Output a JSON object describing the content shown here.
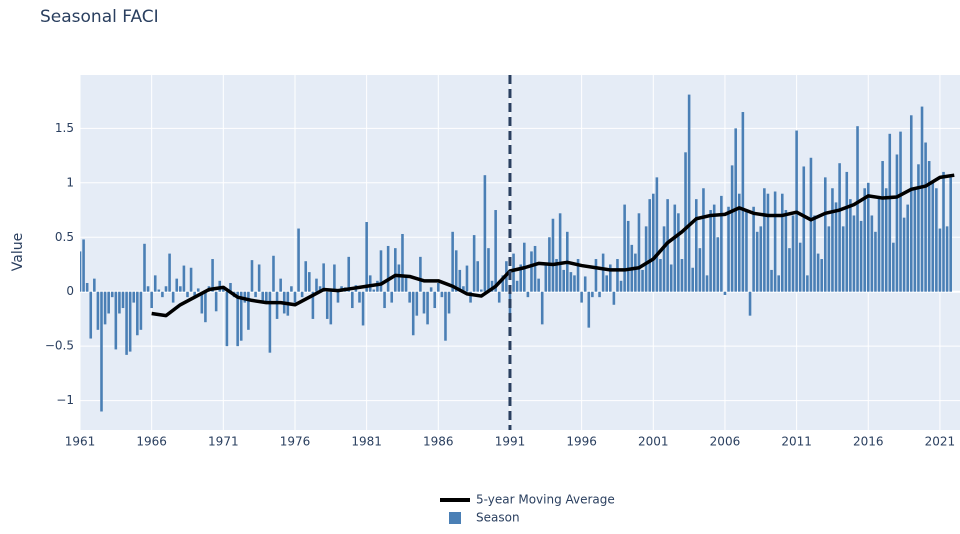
{
  "chart_data": {
    "type": "bar_line",
    "title": "Seasonal FACI",
    "y_label": "Value",
    "xlim": [
      1961,
      2022.4
    ],
    "ylim": [
      -1.27,
      1.99
    ],
    "xticks": [
      1961,
      1966,
      1971,
      1976,
      1981,
      1986,
      1991,
      1996,
      2001,
      2006,
      2011,
      2016,
      2021
    ],
    "yticks": [
      {
        "value": -1,
        "label": "−1"
      },
      {
        "value": -0.5,
        "label": "−0.5"
      },
      0,
      0.5,
      1,
      1.5
    ],
    "grid": true,
    "vertical_line": 1991,
    "series": [
      {
        "name": "5-year Moving Average",
        "kind": "line",
        "color": "#000000",
        "x": [
          1966,
          1967,
          1968,
          1969,
          1970,
          1971,
          1972,
          1973,
          1974,
          1975,
          1976,
          1977,
          1978,
          1979,
          1980,
          1981,
          1982,
          1983,
          1984,
          1985,
          1986,
          1987,
          1988,
          1989,
          1990,
          1991,
          1992,
          1993,
          1994,
          1995,
          1996,
          1997,
          1998,
          1999,
          2000,
          2001,
          2002,
          2003,
          2004,
          2005,
          2006,
          2007,
          2008,
          2009,
          2010,
          2011,
          2012,
          2013,
          2014,
          2015,
          2016,
          2017,
          2018,
          2019,
          2020,
          2021,
          2022
        ],
        "values": [
          -0.2,
          -0.22,
          -0.12,
          -0.05,
          0.02,
          0.04,
          -0.05,
          -0.08,
          -0.1,
          -0.1,
          -0.12,
          -0.05,
          0.02,
          0.01,
          0.03,
          0.05,
          0.07,
          0.15,
          0.14,
          0.1,
          0.1,
          0.05,
          -0.02,
          -0.04,
          0.05,
          0.19,
          0.22,
          0.26,
          0.25,
          0.27,
          0.24,
          0.22,
          0.2,
          0.2,
          0.22,
          0.3,
          0.45,
          0.55,
          0.67,
          0.7,
          0.71,
          0.77,
          0.72,
          0.7,
          0.7,
          0.73,
          0.66,
          0.72,
          0.75,
          0.8,
          0.88,
          0.86,
          0.87,
          0.94,
          0.97,
          1.05,
          1.07
        ]
      },
      {
        "name": "Season",
        "kind": "bar",
        "color": "#4a7fb5",
        "x": [
          1961,
          1961.25,
          1961.5,
          1961.75,
          1962,
          1962.25,
          1962.5,
          1962.75,
          1963,
          1963.25,
          1963.5,
          1963.75,
          1964,
          1964.25,
          1964.5,
          1964.75,
          1965,
          1965.25,
          1965.5,
          1965.75,
          1966,
          1966.25,
          1966.5,
          1966.75,
          1967,
          1967.25,
          1967.5,
          1967.75,
          1968,
          1968.25,
          1968.5,
          1968.75,
          1969,
          1969.25,
          1969.5,
          1969.75,
          1970,
          1970.25,
          1970.5,
          1970.75,
          1971,
          1971.25,
          1971.5,
          1971.75,
          1972,
          1972.25,
          1972.5,
          1972.75,
          1973,
          1973.25,
          1973.5,
          1973.75,
          1974,
          1974.25,
          1974.5,
          1974.75,
          1975,
          1975.25,
          1975.5,
          1975.75,
          1976,
          1976.25,
          1976.5,
          1976.75,
          1977,
          1977.25,
          1977.5,
          1977.75,
          1978,
          1978.25,
          1978.5,
          1978.75,
          1979,
          1979.25,
          1979.5,
          1979.75,
          1980,
          1980.25,
          1980.5,
          1980.75,
          1981,
          1981.25,
          1981.5,
          1981.75,
          1982,
          1982.25,
          1982.5,
          1982.75,
          1983,
          1983.25,
          1983.5,
          1983.75,
          1984,
          1984.25,
          1984.5,
          1984.75,
          1985,
          1985.25,
          1985.5,
          1985.75,
          1986,
          1986.25,
          1986.5,
          1986.75,
          1987,
          1987.25,
          1987.5,
          1987.75,
          1988,
          1988.25,
          1988.5,
          1988.75,
          1989,
          1989.25,
          1989.5,
          1989.75,
          1990,
          1990.25,
          1990.5,
          1990.75,
          1991,
          1991.25,
          1991.5,
          1991.75,
          1992,
          1992.25,
          1992.5,
          1992.75,
          1993,
          1993.25,
          1993.5,
          1993.75,
          1994,
          1994.25,
          1994.5,
          1994.75,
          1995,
          1995.25,
          1995.5,
          1995.75,
          1996,
          1996.25,
          1996.5,
          1996.75,
          1997,
          1997.25,
          1997.5,
          1997.75,
          1998,
          1998.25,
          1998.5,
          1998.75,
          1999,
          1999.25,
          1999.5,
          1999.75,
          2000,
          2000.25,
          2000.5,
          2000.75,
          2001,
          2001.25,
          2001.5,
          2001.75,
          2002,
          2002.25,
          2002.5,
          2002.75,
          2003,
          2003.25,
          2003.5,
          2003.75,
          2004,
          2004.25,
          2004.5,
          2004.75,
          2005,
          2005.25,
          2005.5,
          2005.75,
          2006,
          2006.25,
          2006.5,
          2006.75,
          2007,
          2007.25,
          2007.5,
          2007.75,
          2008,
          2008.25,
          2008.5,
          2008.75,
          2009,
          2009.25,
          2009.5,
          2009.75,
          2010,
          2010.25,
          2010.5,
          2010.75,
          2011,
          2011.25,
          2011.5,
          2011.75,
          2012,
          2012.25,
          2012.5,
          2012.75,
          2013,
          2013.25,
          2013.5,
          2013.75,
          2014,
          2014.25,
          2014.5,
          2014.75,
          2015,
          2015.25,
          2015.5,
          2015.75,
          2016,
          2016.25,
          2016.5,
          2016.75,
          2017,
          2017.25,
          2017.5,
          2017.75,
          2018,
          2018.25,
          2018.5,
          2018.75,
          2019,
          2019.25,
          2019.5,
          2019.75,
          2020,
          2020.25,
          2020.5,
          2020.75,
          2021,
          2021.25,
          2021.5,
          2021.75
        ],
        "values": [
          0.37,
          0.48,
          0.08,
          -0.43,
          0.12,
          -0.35,
          -1.1,
          -0.3,
          -0.2,
          -0.05,
          -0.53,
          -0.2,
          -0.15,
          -0.58,
          -0.55,
          -0.1,
          -0.4,
          -0.35,
          0.44,
          0.05,
          -0.15,
          0.15,
          0.02,
          -0.05,
          0.05,
          0.35,
          -0.1,
          0.12,
          0.05,
          0.24,
          -0.05,
          0.22,
          -0.05,
          0.03,
          -0.2,
          -0.28,
          0.05,
          0.3,
          -0.18,
          0.1,
          0.03,
          -0.5,
          0.08,
          -0.05,
          -0.5,
          -0.45,
          -0.1,
          -0.35,
          0.29,
          -0.05,
          0.25,
          -0.1,
          -0.1,
          -0.56,
          0.33,
          -0.25,
          0.12,
          -0.2,
          -0.22,
          0.05,
          -0.1,
          0.58,
          -0.05,
          0.28,
          0.18,
          -0.25,
          0.12,
          0.05,
          0.26,
          -0.25,
          -0.3,
          0.25,
          -0.1,
          0.05,
          0.04,
          0.32,
          -0.15,
          0.06,
          -0.1,
          -0.31,
          0.64,
          0.15,
          0.02,
          0.1,
          0.38,
          -0.15,
          0.42,
          -0.1,
          0.4,
          0.25,
          0.53,
          0.15,
          -0.1,
          -0.4,
          -0.22,
          0.32,
          -0.2,
          -0.3,
          0.04,
          -0.15,
          0.08,
          -0.05,
          -0.45,
          -0.2,
          0.55,
          0.38,
          0.2,
          0.05,
          0.24,
          -0.1,
          0.52,
          0.28,
          0.02,
          1.07,
          0.4,
          0.1,
          0.75,
          -0.1,
          0.15,
          0.28,
          -0.2,
          0.35,
          0.1,
          0.25,
          0.45,
          -0.05,
          0.37,
          0.42,
          0.12,
          -0.3,
          0.25,
          0.5,
          0.67,
          0.3,
          0.72,
          0.2,
          0.55,
          0.18,
          0.15,
          0.3,
          -0.1,
          0.14,
          -0.33,
          -0.05,
          0.3,
          -0.05,
          0.35,
          0.15,
          0.25,
          -0.12,
          0.3,
          0.1,
          0.8,
          0.65,
          0.43,
          0.35,
          0.72,
          0.2,
          0.6,
          0.85,
          0.9,
          1.05,
          0.3,
          0.6,
          0.85,
          0.25,
          0.8,
          0.72,
          0.3,
          1.28,
          1.81,
          0.22,
          0.85,
          0.4,
          0.95,
          0.15,
          0.75,
          0.8,
          0.5,
          0.88,
          -0.03,
          0.78,
          1.16,
          1.5,
          0.9,
          1.65,
          0.75,
          -0.22,
          0.78,
          0.55,
          0.6,
          0.95,
          0.9,
          0.2,
          0.92,
          0.15,
          0.9,
          0.75,
          0.4,
          0.7,
          1.48,
          0.45,
          1.15,
          0.15,
          1.23,
          0.7,
          0.35,
          0.3,
          1.05,
          0.6,
          0.95,
          0.82,
          1.18,
          0.6,
          1.1,
          0.85,
          0.7,
          1.52,
          0.65,
          0.95,
          1.0,
          0.7,
          0.55,
          0.88,
          1.2,
          0.95,
          1.45,
          0.45,
          1.26,
          1.47,
          0.68,
          0.8,
          1.62,
          0.95,
          1.17,
          1.7,
          1.37,
          1.2,
          1.0,
          0.95,
          0.58,
          1.1,
          0.6,
          1.05
        ]
      }
    ]
  }
}
